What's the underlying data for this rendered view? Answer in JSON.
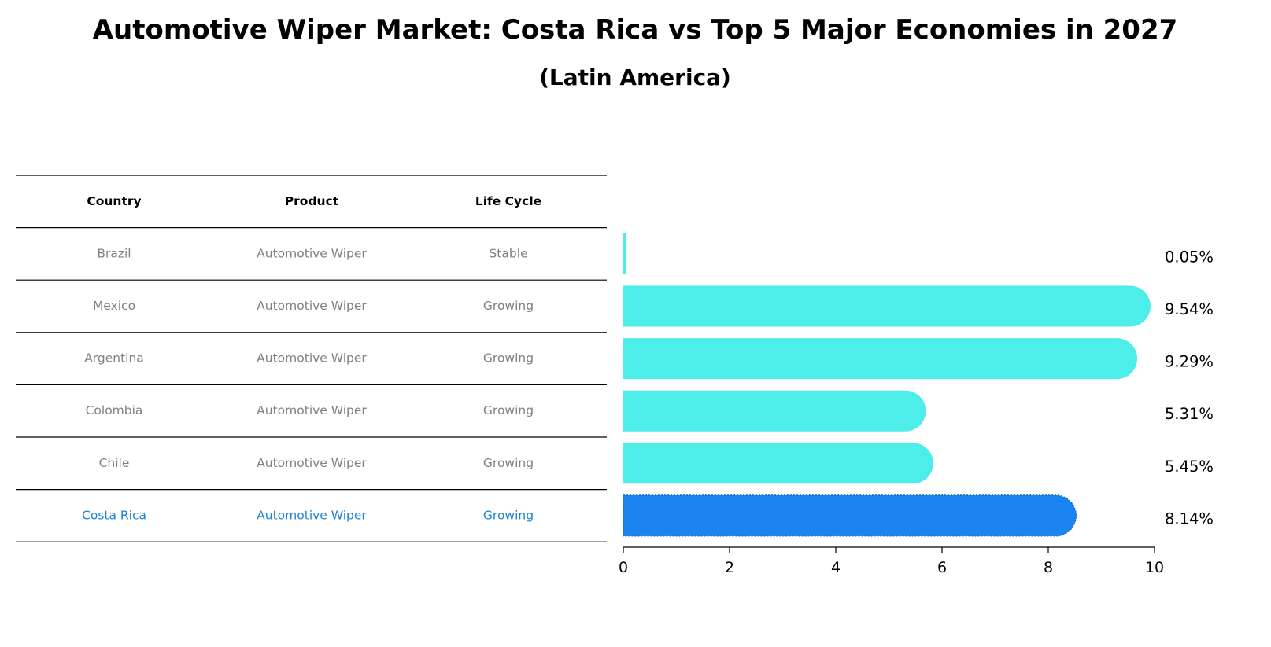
{
  "title": "Automotive Wiper Market: Costa Rica vs Top 5 Major Economies in 2027",
  "subtitle": "(Latin America)",
  "colors": {
    "bar": "#4DEDEA",
    "highlight_bar": "#1A85F0",
    "cell_text": "#808080",
    "highlight_text": "#1C84D6",
    "rule": "#000000"
  },
  "table": {
    "headers": [
      "Country",
      "Product",
      "Life Cycle"
    ],
    "rows": [
      {
        "country": "Brazil",
        "product": "Automotive Wiper",
        "life_cycle": "Stable",
        "highlight": false
      },
      {
        "country": "Mexico",
        "product": "Automotive Wiper",
        "life_cycle": "Growing",
        "highlight": false
      },
      {
        "country": "Argentina",
        "product": "Automotive Wiper",
        "life_cycle": "Growing",
        "highlight": false
      },
      {
        "country": "Colombia",
        "product": "Automotive Wiper",
        "life_cycle": "Growing",
        "highlight": false
      },
      {
        "country": "Chile",
        "product": "Automotive Wiper",
        "life_cycle": "Growing",
        "highlight": false
      },
      {
        "country": "Costa Rica",
        "product": "Automotive Wiper",
        "life_cycle": "Growing",
        "highlight": true
      }
    ]
  },
  "chart_data": {
    "type": "bar",
    "orientation": "horizontal",
    "title": "Automotive Wiper Market: Costa Rica vs Top 5 Major Economies in 2027",
    "subtitle": "(Latin America)",
    "categories": [
      "Brazil",
      "Mexico",
      "Argentina",
      "Colombia",
      "Chile",
      "Costa Rica"
    ],
    "values": [
      0.05,
      9.54,
      9.29,
      5.31,
      5.45,
      8.14
    ],
    "value_labels": [
      "0.05%",
      "9.54%",
      "9.29%",
      "5.31%",
      "5.45%",
      "8.14%"
    ],
    "highlight_category": "Costa Rica",
    "xlim": [
      0,
      10
    ],
    "xticks": [
      0,
      2,
      4,
      6,
      8,
      10
    ],
    "xlabel": "",
    "ylabel": "",
    "grid": false,
    "legend": "none"
  }
}
